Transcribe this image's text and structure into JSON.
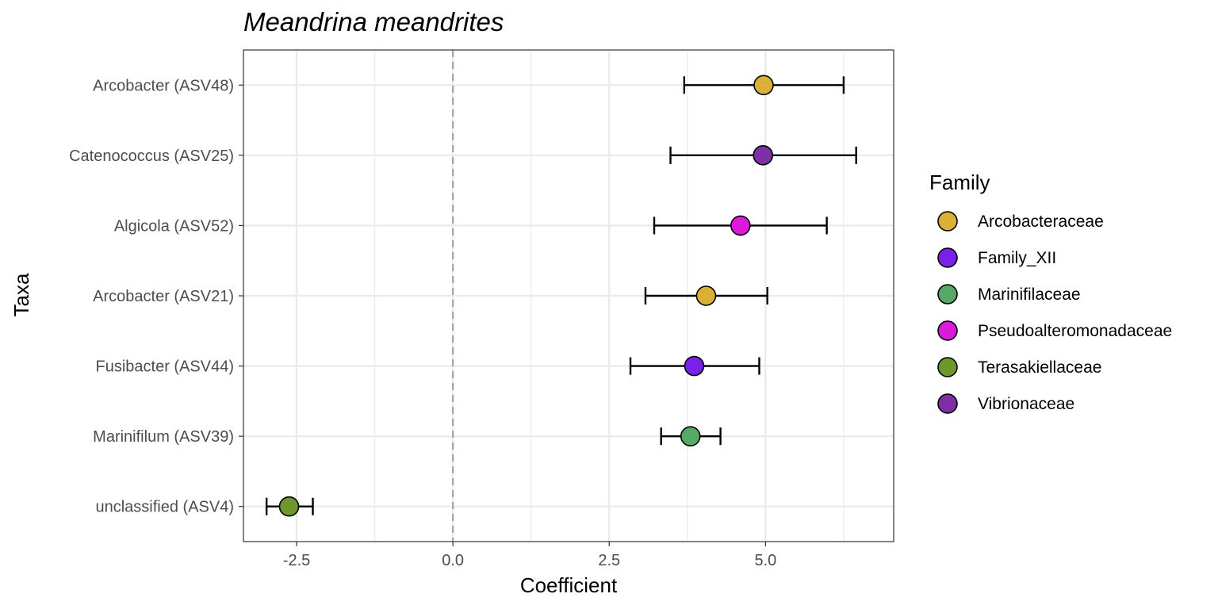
{
  "chart_data": {
    "type": "scatter",
    "title": "Meandrina meandrites",
    "xlabel": "Coefficient",
    "ylabel": "Taxa",
    "xlim": [
      -3.35,
      7.05
    ],
    "xticks": [
      -2.5,
      0.0,
      2.5,
      5.0
    ],
    "xtick_labels": [
      "-2.5",
      "0.0",
      "2.5",
      "5.0"
    ],
    "reference_line": 0,
    "grid": true,
    "legend_title": "Family",
    "legend_position": "right",
    "families": [
      {
        "name": "Arcobacteraceae",
        "color": "#DAB136"
      },
      {
        "name": "Family_XII",
        "color": "#7B1FEB"
      },
      {
        "name": "Marinifilaceae",
        "color": "#57AA66"
      },
      {
        "name": "Pseudoalteromonadaceae",
        "color": "#DB1BD9"
      },
      {
        "name": "Terasakiellaceae",
        "color": "#6E982E"
      },
      {
        "name": "Vibrionaceae",
        "color": "#7D2FA6"
      }
    ],
    "points": [
      {
        "taxon": "Arcobacter (ASV48)",
        "family": "Arcobacteraceae",
        "estimate": 4.97,
        "lower": 3.7,
        "upper": 6.25
      },
      {
        "taxon": "Catenococcus (ASV25)",
        "family": "Vibrionaceae",
        "estimate": 4.96,
        "lower": 3.48,
        "upper": 6.45
      },
      {
        "taxon": "Algicola (ASV52)",
        "family": "Pseudoalteromonadaceae",
        "estimate": 4.6,
        "lower": 3.22,
        "upper": 5.98
      },
      {
        "taxon": "Arcobacter (ASV21)",
        "family": "Arcobacteraceae",
        "estimate": 4.05,
        "lower": 3.08,
        "upper": 5.03
      },
      {
        "taxon": "Fusibacter (ASV44)",
        "family": "Family_XII",
        "estimate": 3.86,
        "lower": 2.84,
        "upper": 4.9
      },
      {
        "taxon": "Marinifilum (ASV39)",
        "family": "Marinifilaceae",
        "estimate": 3.8,
        "lower": 3.33,
        "upper": 4.28
      },
      {
        "taxon": "unclassified (ASV4)",
        "family": "Terasakiellaceae",
        "estimate": -2.62,
        "lower": -2.98,
        "upper": -2.24
      }
    ]
  }
}
